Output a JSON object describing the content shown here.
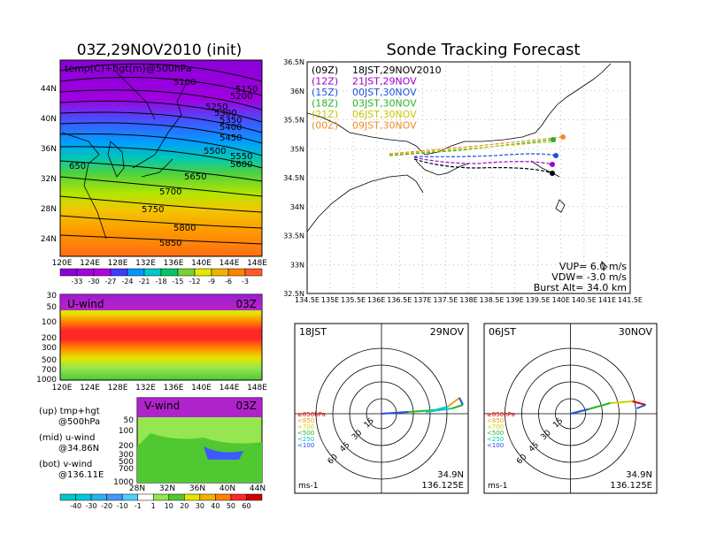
{
  "left_title": "03Z,29NOV2010 (init)",
  "right_title": "Sonde Tracking Forecast",
  "upper_map": {
    "label": "temp(C)+hgt(m)@500hPa",
    "lat_labels": [
      "44N",
      "40N",
      "36N",
      "32N",
      "28N",
      "24N"
    ],
    "lon_labels": [
      "120E",
      "124E",
      "128E",
      "132E",
      "136E",
      "140E",
      "144E",
      "148E"
    ],
    "contour_labels": [
      "5100",
      "5150",
      "5200",
      "5250",
      "5300",
      "5350",
      "5400",
      "5450",
      "5500",
      "5550",
      "5600",
      "5650",
      "5700",
      "5750",
      "5800",
      "5850",
      "650"
    ]
  },
  "temp_colorbar": {
    "labels": [
      "-33",
      "-30",
      "-27",
      "-24",
      "-21",
      "-18",
      "-15",
      "-12",
      "-9",
      "-6",
      "-3"
    ],
    "colors": [
      "#8a00d8",
      "#a400e0",
      "#b400e0",
      "#3c3cff",
      "#0096ff",
      "#00c8c8",
      "#00c864",
      "#78d232",
      "#e6e600",
      "#f0b400",
      "#ff8200",
      "#ff5a28"
    ]
  },
  "u_wind": {
    "title": "U-wind",
    "time": "03Z",
    "y_labels": [
      "30",
      "50",
      "100",
      "200",
      "300",
      "500",
      "700",
      "1000"
    ],
    "x_labels": [
      "120E",
      "124E",
      "128E",
      "132E",
      "136E",
      "140E",
      "144E",
      "148E"
    ]
  },
  "v_wind": {
    "title": "V-wind",
    "time": "03Z",
    "y_labels": [
      "50",
      "100",
      "200",
      "300",
      "500",
      "700",
      "1000"
    ],
    "x_labels": [
      "28N",
      "32N",
      "36N",
      "40N",
      "44N"
    ]
  },
  "side_labels": [
    {
      "a": "(up) tmp+hgt",
      "b": "@500hPa"
    },
    {
      "a": "(mid) u-wind",
      "b": "@34.86N"
    },
    {
      "a": "(bot) v-wind",
      "b": "@136.11E"
    }
  ],
  "wind_colorbar": {
    "labels": [
      "-40",
      "-30",
      "-20",
      "-10",
      "-1",
      "1",
      "10",
      "20",
      "30",
      "40",
      "50",
      "60"
    ],
    "colors": [
      "#00c8c8",
      "#00c8dc",
      "#28b4f0",
      "#4696ff",
      "#50d2ff",
      "#ffffff",
      "#96e650",
      "#50c832",
      "#e6e600",
      "#f0b400",
      "#ff8200",
      "#ff2828",
      "#d20000"
    ]
  },
  "track_map": {
    "y_labels": [
      "36.5N",
      "36N",
      "35.5N",
      "35N",
      "34.5N",
      "34N",
      "33.5N",
      "33N",
      "32.5N"
    ],
    "x_labels": [
      "134.5E",
      "135E",
      "135.5E",
      "136E",
      "136.5E",
      "137E",
      "137.5E",
      "138E",
      "138.5E",
      "139E",
      "139.5E",
      "140E",
      "140.5E",
      "141E",
      "141.5E"
    ],
    "legend": [
      {
        "z": "(09Z)",
        "text": "18JST,29NOV2010",
        "color": "#000000"
      },
      {
        "z": "(12Z)",
        "text": "21JST,29NOV",
        "color": "#a000c8"
      },
      {
        "z": "(15Z)",
        "text": "00JST,30NOV",
        "color": "#1e50dc"
      },
      {
        "z": "(18Z)",
        "text": "03JST,30NOV",
        "color": "#28b428"
      },
      {
        "z": "(21Z)",
        "text": "06JST,30NOV",
        "color": "#c8c800"
      },
      {
        "z": "(00Z)",
        "text": "09JST,30NOV",
        "color": "#f08c28"
      }
    ],
    "info": [
      "VUP= 6.0 m/s",
      "VDW= -3.0 m/s",
      "Burst Alt= 34.0 km"
    ]
  },
  "hodographs": [
    {
      "left": "18JST",
      "right": "29NOV",
      "loc1": "34.9N",
      "loc2": "136.125E",
      "unit": "ms-1"
    },
    {
      "left": "06JST",
      "right": "30NOV",
      "loc1": "34.9N",
      "loc2": "136.125E",
      "unit": "ms-1"
    }
  ],
  "hodo_rings": [
    "15",
    "30",
    "45",
    "60"
  ],
  "hodo_legend": [
    {
      "text": "≥850hPa",
      "color": "#e60000"
    },
    {
      "text": "<850",
      "color": "#f0a000"
    },
    {
      "text": "<700",
      "color": "#d2d200"
    },
    {
      "text": "<500",
      "color": "#28b428"
    },
    {
      "text": "<250",
      "color": "#00c8c8"
    },
    {
      "text": "<100",
      "color": "#1e50dc"
    }
  ]
}
